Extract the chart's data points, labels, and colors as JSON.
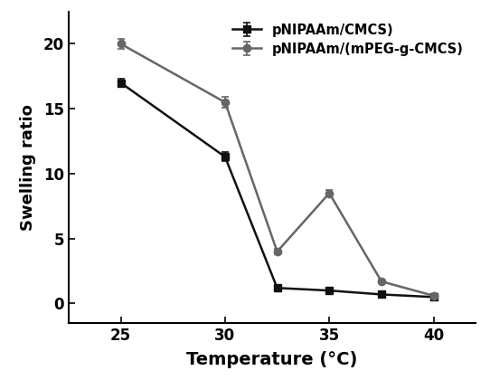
{
  "series1": {
    "label": "pNIPAAm/CMCS)",
    "x": [
      25,
      30,
      32.5,
      35,
      37.5,
      40
    ],
    "y": [
      17.0,
      11.3,
      1.2,
      1.0,
      0.7,
      0.5
    ],
    "yerr": [
      0.3,
      0.35,
      0.15,
      0.1,
      0.1,
      0.08
    ],
    "color": "#111111",
    "marker": "s",
    "markersize": 6,
    "linewidth": 1.8
  },
  "series2": {
    "label": "pNIPAAm/(mPEG-g-CMCS)",
    "x": [
      25,
      30,
      32.5,
      35,
      37.5,
      40
    ],
    "y": [
      20.0,
      15.5,
      4.0,
      8.5,
      1.7,
      0.6
    ],
    "yerr": [
      0.4,
      0.4,
      0.2,
      0.25,
      0.15,
      0.1
    ],
    "color": "#666666",
    "marker": "o",
    "markersize": 6,
    "linewidth": 1.8
  },
  "xlabel": "Temperature (°C)",
  "ylabel": "Swelling ratio",
  "xlim": [
    22.5,
    42
  ],
  "ylim": [
    -1.5,
    22.5
  ],
  "xticks": [
    25,
    30,
    35,
    40
  ],
  "yticks": [
    0,
    5,
    10,
    15,
    20
  ],
  "legend_loc": "upper right",
  "figsize": [
    5.42,
    4.2
  ],
  "dpi": 100,
  "background_color": "#ffffff",
  "xlabel_fontsize": 14,
  "ylabel_fontsize": 13,
  "tick_fontsize": 12,
  "legend_fontsize": 10.5
}
